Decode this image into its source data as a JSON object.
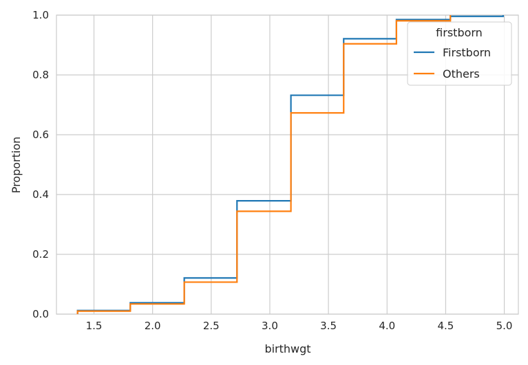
{
  "chart_data": {
    "type": "line",
    "drawstyle": "ecdf-step",
    "xlabel": "birthwgt",
    "ylabel": "Proportion",
    "xlim": [
      1.18,
      5.12
    ],
    "ylim": [
      0.0,
      1.0
    ],
    "xticks": [
      "1.5",
      "2.0",
      "2.5",
      "3.0",
      "3.5",
      "4.0",
      "4.5",
      "5.0"
    ],
    "xtick_values": [
      1.5,
      2.0,
      2.5,
      3.0,
      3.5,
      4.0,
      4.5,
      5.0
    ],
    "yticks": [
      "0.0",
      "0.2",
      "0.4",
      "0.6",
      "0.8",
      "1.0"
    ],
    "ytick_values": [
      0.0,
      0.2,
      0.4,
      0.6,
      0.8,
      1.0
    ],
    "grid": true,
    "legend": {
      "title": "firstborn",
      "placement": "top-right"
    },
    "series": [
      {
        "name": "Firstborn",
        "color": "#1f77b4",
        "x": [
          1.36,
          1.81,
          2.27,
          2.72,
          3.18,
          3.63,
          4.08,
          4.54,
          4.99
        ],
        "y": [
          0.012,
          0.038,
          0.121,
          0.379,
          0.732,
          0.921,
          0.985,
          0.996,
          1.0
        ]
      },
      {
        "name": "Others",
        "color": "#ff7f0e",
        "x": [
          1.36,
          1.81,
          2.27,
          2.72,
          3.18,
          3.63,
          4.08,
          4.54
        ],
        "y": [
          0.01,
          0.034,
          0.107,
          0.344,
          0.673,
          0.904,
          0.981,
          1.0
        ]
      }
    ]
  }
}
